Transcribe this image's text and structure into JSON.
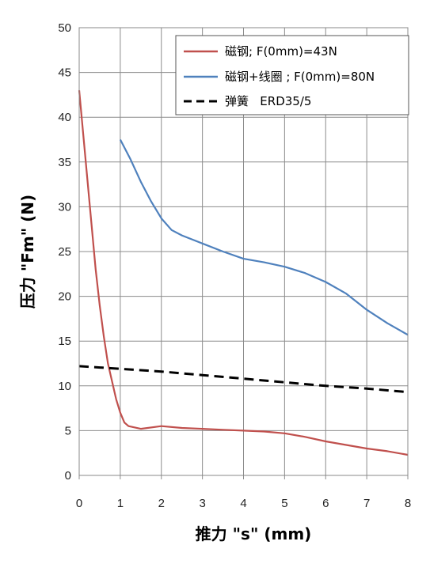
{
  "chart_data": {
    "type": "line",
    "xlabel": "推力 \"s\" (mm)",
    "ylabel": "压力 \"Fm\" (N)",
    "xlim": [
      0,
      8
    ],
    "ylim": [
      0,
      50
    ],
    "x_ticks": [
      "0",
      "1",
      "2",
      "3",
      "4",
      "5",
      "6",
      "7",
      "8"
    ],
    "y_ticks": [
      "0",
      "5",
      "10",
      "15",
      "20",
      "25",
      "30",
      "35",
      "40",
      "45",
      "50"
    ],
    "grid": true,
    "legend_position": "top-right",
    "series": [
      {
        "name": "磁钢; F(0mm)=43N",
        "color": "#c0504d",
        "style": "solid",
        "x": [
          0,
          0.1,
          0.2,
          0.3,
          0.4,
          0.5,
          0.6,
          0.7,
          0.8,
          0.9,
          1.0,
          1.1,
          1.2,
          1.5,
          2.0,
          2.5,
          3.0,
          3.5,
          4.0,
          4.5,
          5.0,
          5.5,
          6.0,
          6.5,
          7.0,
          7.5,
          8.0
        ],
        "y": [
          43,
          38,
          33,
          28,
          23,
          19,
          15.5,
          12.5,
          10.5,
          8.5,
          7.0,
          5.9,
          5.5,
          5.2,
          5.5,
          5.3,
          5.2,
          5.1,
          5.0,
          4.9,
          4.7,
          4.3,
          3.8,
          3.4,
          3.0,
          2.7,
          2.3
        ]
      },
      {
        "name": "磁钢+线圈 ; F(0mm)=80N",
        "color": "#4f81bd",
        "style": "solid",
        "x": [
          1.0,
          1.25,
          1.5,
          1.75,
          2.0,
          2.25,
          2.5,
          3.0,
          3.5,
          4.0,
          4.5,
          5.0,
          5.5,
          6.0,
          6.5,
          7.0,
          7.5,
          8.0
        ],
        "y": [
          37.5,
          35.3,
          32.8,
          30.6,
          28.7,
          27.4,
          26.8,
          25.9,
          25.0,
          24.2,
          23.8,
          23.3,
          22.6,
          21.6,
          20.3,
          18.5,
          17.0,
          15.7
        ]
      },
      {
        "name": "弹簧   ERD35/5",
        "color": "#000000",
        "style": "dashed",
        "x": [
          0,
          1,
          2,
          3,
          4,
          5,
          6,
          7,
          8
        ],
        "y": [
          12.2,
          11.9,
          11.6,
          11.2,
          10.8,
          10.4,
          10.0,
          9.7,
          9.3
        ]
      }
    ]
  }
}
